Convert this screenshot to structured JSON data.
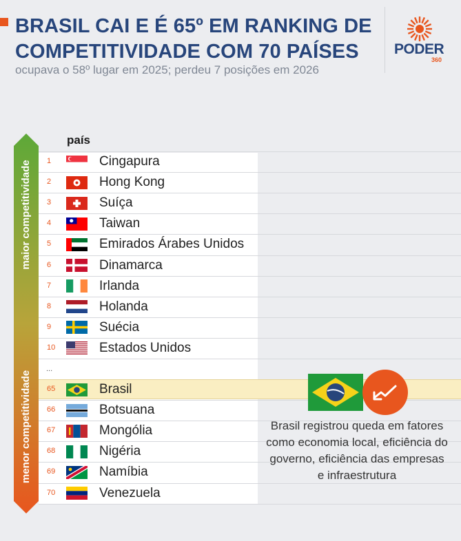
{
  "header": {
    "title": "BRASIL CAI E É 65º EM RANKING DE COMPETITIVIDADE COM 70 PAÍSES",
    "subtitle": "ocupava o 58º lugar em 2025; perdeu 7 posições em 2026"
  },
  "logo": {
    "word": "PODER",
    "number": "360"
  },
  "colors": {
    "accent": "#e8561e",
    "navy": "#27457b",
    "highlight": "#faeec2",
    "axis_top": "#6cab3f",
    "axis_bottom": "#e8561e"
  },
  "chart_data": {
    "type": "table",
    "column_header": "país",
    "axis_top_label": "maior competitividade",
    "axis_bottom_label": "menor competitividade",
    "top_rows": [
      {
        "rank": "1",
        "country": "Cingapura",
        "flag": "singapore-flag-icon"
      },
      {
        "rank": "2",
        "country": "Hong Kong",
        "flag": "hong-kong-flag-icon"
      },
      {
        "rank": "3",
        "country": "Suíça",
        "flag": "switzerland-flag-icon"
      },
      {
        "rank": "4",
        "country": "Taiwan",
        "flag": "taiwan-flag-icon"
      },
      {
        "rank": "5",
        "country": "Emirados Árabes Unidos",
        "flag": "uae-flag-icon"
      },
      {
        "rank": "6",
        "country": "Dinamarca",
        "flag": "denmark-flag-icon"
      },
      {
        "rank": "7",
        "country": "Irlanda",
        "flag": "ireland-flag-icon"
      },
      {
        "rank": "8",
        "country": "Holanda",
        "flag": "netherlands-flag-icon"
      },
      {
        "rank": "9",
        "country": "Suécia",
        "flag": "sweden-flag-icon"
      },
      {
        "rank": "10",
        "country": "Estados Unidos",
        "flag": "usa-flag-icon"
      }
    ],
    "ellipsis": "...",
    "bottom_rows": [
      {
        "rank": "65",
        "country": "Brasil",
        "flag": "brazil-flag-icon",
        "highlighted": true
      },
      {
        "rank": "66",
        "country": "Botsuana",
        "flag": "botswana-flag-icon"
      },
      {
        "rank": "67",
        "country": "Mongólia",
        "flag": "mongolia-flag-icon"
      },
      {
        "rank": "68",
        "country": "Nigéria",
        "flag": "nigeria-flag-icon"
      },
      {
        "rank": "69",
        "country": "Namíbia",
        "flag": "namibia-flag-icon"
      },
      {
        "rank": "70",
        "country": "Venezuela",
        "flag": "venezuela-flag-icon"
      }
    ],
    "annotation": "Brasil registrou queda em fatores como economia local, eficiência do governo, eficiência das empresas e infraestrutura"
  }
}
